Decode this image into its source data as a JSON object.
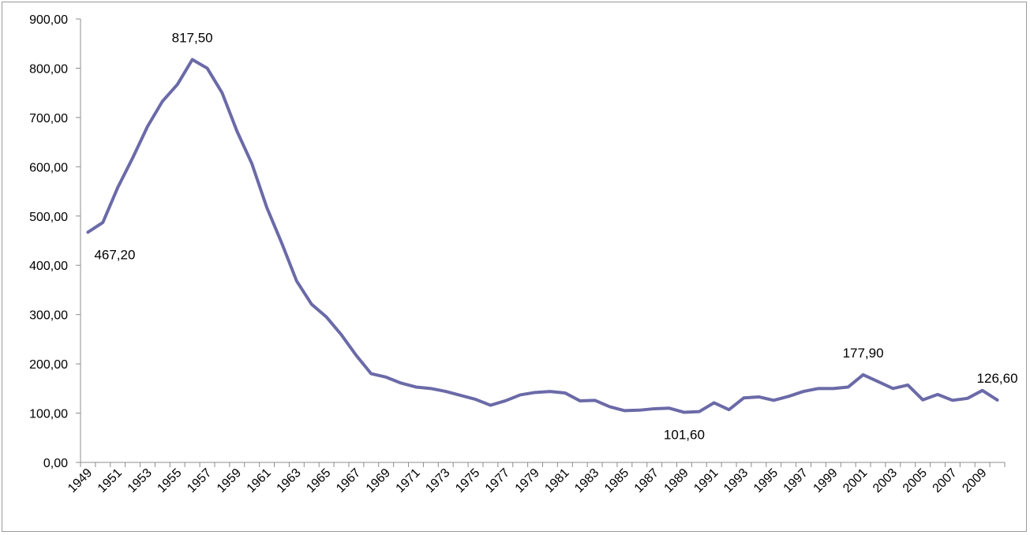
{
  "chart_data": {
    "type": "line",
    "title": "",
    "xlabel": "",
    "ylabel": "",
    "ylim": [
      0,
      900
    ],
    "y_ticks": [
      "0,00",
      "100,00",
      "200,00",
      "300,00",
      "400,00",
      "500,00",
      "600,00",
      "700,00",
      "800,00",
      "900,00"
    ],
    "x_tick_labels": [
      "1949",
      "1951",
      "1953",
      "1955",
      "1957",
      "1959",
      "1961",
      "1963",
      "1965",
      "1967",
      "1969",
      "1971",
      "1973",
      "1975",
      "1977",
      "1979",
      "1981",
      "1983",
      "1985",
      "1987",
      "1989",
      "1991",
      "1993",
      "1995",
      "1997",
      "1999",
      "2001",
      "2003",
      "2005",
      "2007",
      "2009"
    ],
    "grid": false,
    "legend": "none",
    "line_color": "#6b6aa8",
    "x": [
      1949,
      1950,
      1951,
      1952,
      1953,
      1954,
      1955,
      1956,
      1957,
      1958,
      1959,
      1960,
      1961,
      1962,
      1963,
      1964,
      1965,
      1966,
      1967,
      1968,
      1969,
      1970,
      1971,
      1972,
      1973,
      1974,
      1975,
      1976,
      1977,
      1978,
      1979,
      1980,
      1981,
      1982,
      1983,
      1984,
      1985,
      1986,
      1987,
      1988,
      1989,
      1990,
      1991,
      1992,
      1993,
      1994,
      1995,
      1996,
      1997,
      1998,
      1999,
      2000,
      2001,
      2002,
      2003,
      2004,
      2005,
      2006,
      2007,
      2008,
      2009,
      2010
    ],
    "values": [
      467.2,
      487,
      558,
      618,
      682,
      733,
      767,
      817.5,
      800,
      750,
      672,
      606,
      517,
      445,
      368,
      321,
      295,
      259,
      217,
      180,
      173,
      161,
      153,
      150,
      144,
      136,
      128,
      116,
      125,
      137,
      142,
      144,
      141,
      125,
      126,
      113,
      105,
      106,
      109,
      110,
      101.6,
      103,
      121,
      107,
      131,
      133,
      126,
      134,
      144,
      150,
      150,
      153,
      177.9,
      164,
      150,
      157,
      127,
      138,
      126,
      130,
      146,
      126.6
    ],
    "data_labels": [
      {
        "label": "467,20",
        "x": 1949,
        "position": "below-right"
      },
      {
        "label": "817,50",
        "x": 1956,
        "position": "above"
      },
      {
        "label": "101,60",
        "x": 1989,
        "position": "below"
      },
      {
        "label": "177,90",
        "x": 2001,
        "position": "above"
      },
      {
        "label": "126,60",
        "x": 2010,
        "position": "above"
      }
    ]
  }
}
